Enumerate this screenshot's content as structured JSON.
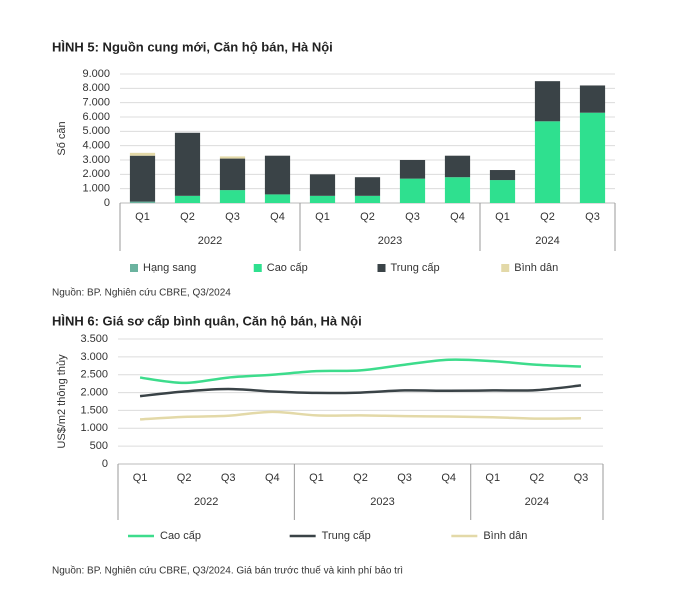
{
  "chart_data": [
    {
      "type": "bar",
      "stacked": true,
      "title": "HÌNH 5: Nguồn cung mới, Căn hộ bán, Hà Nội",
      "ylabel": "Số căn",
      "source": "Nguồn: BP. Nghiên cứu CBRE, Q3/2024",
      "groups": [
        {
          "name": "2022",
          "categories": [
            "Q1",
            "Q2",
            "Q3",
            "Q4"
          ]
        },
        {
          "name": "2023",
          "categories": [
            "Q1",
            "Q2",
            "Q3",
            "Q4"
          ]
        },
        {
          "name": "2024",
          "categories": [
            "Q1",
            "Q2",
            "Q3"
          ]
        }
      ],
      "series": [
        {
          "name": "Hạng sang",
          "color": "#6bb39f",
          "values": [
            100,
            0,
            0,
            0,
            0,
            0,
            0,
            0,
            0,
            0,
            0
          ]
        },
        {
          "name": "Cao cấp",
          "color": "#2fe08f",
          "values": [
            0,
            500,
            900,
            600,
            500,
            500,
            1700,
            1800,
            1600,
            5700,
            6300
          ]
        },
        {
          "name": "Trung cấp",
          "color": "#3a4347",
          "values": [
            3200,
            4400,
            2200,
            2700,
            1500,
            1300,
            1300,
            1500,
            700,
            2800,
            1900
          ]
        },
        {
          "name": "Bình dân",
          "color": "#e3d9a8",
          "values": [
            200,
            0,
            150,
            0,
            0,
            0,
            0,
            0,
            0,
            0,
            0
          ]
        }
      ],
      "ylim": [
        0,
        9000
      ],
      "yticks": [
        0,
        {
          "value": 1000,
          "label": "1.000"
        },
        {
          "value": 2000,
          "label": "2.000"
        },
        {
          "value": 3000,
          "label": "3.000"
        },
        {
          "value": 4000,
          "label": "4.000"
        },
        {
          "value": 5000,
          "label": "5.000"
        },
        {
          "value": 6000,
          "label": "6.000"
        },
        {
          "value": 7000,
          "label": "7.000"
        },
        {
          "value": 8000,
          "label": "8.000"
        },
        {
          "value": 9000,
          "label": "9.000"
        }
      ],
      "grid": true,
      "legend": "bottom"
    },
    {
      "type": "line",
      "title": "HÌNH 6: Giá sơ cấp bình quân, Căn hộ bán, Hà Nội",
      "ylabel": "US$/m2 thông thủy",
      "source": "Nguồn: BP. Nghiên cứu CBRE, Q3/2024. Giá bán trước thuế và kinh phí bảo trì",
      "groups": [
        {
          "name": "2022",
          "categories": [
            "Q1",
            "Q2",
            "Q3",
            "Q4"
          ]
        },
        {
          "name": "2023",
          "categories": [
            "Q1",
            "Q2",
            "Q3",
            "Q4"
          ]
        },
        {
          "name": "2024",
          "categories": [
            "Q1",
            "Q2",
            "Q3"
          ]
        }
      ],
      "series": [
        {
          "name": "Cao cấp",
          "color": "#3ddc8c",
          "values": [
            2420,
            2270,
            2420,
            2500,
            2600,
            2620,
            2780,
            2920,
            2880,
            2780,
            2730
          ]
        },
        {
          "name": "Trung cấp",
          "color": "#3a4347",
          "values": [
            1900,
            2030,
            2100,
            2030,
            1990,
            2000,
            2060,
            2050,
            2060,
            2070,
            2200
          ]
        },
        {
          "name": "Bình dân",
          "color": "#e3d9a8",
          "values": [
            1250,
            1320,
            1350,
            1460,
            1360,
            1360,
            1340,
            1330,
            1310,
            1270,
            1280
          ]
        }
      ],
      "ylim": [
        0,
        3500
      ],
      "yticks": [
        0,
        500,
        {
          "value": 1000,
          "label": "1.000"
        },
        {
          "value": 1500,
          "label": "1.500"
        },
        {
          "value": 2000,
          "label": "2.000"
        },
        {
          "value": 2500,
          "label": "2.500"
        },
        {
          "value": 3000,
          "label": "3.000"
        },
        {
          "value": 3500,
          "label": "3.500"
        }
      ],
      "grid": true,
      "legend": "bottom"
    }
  ]
}
